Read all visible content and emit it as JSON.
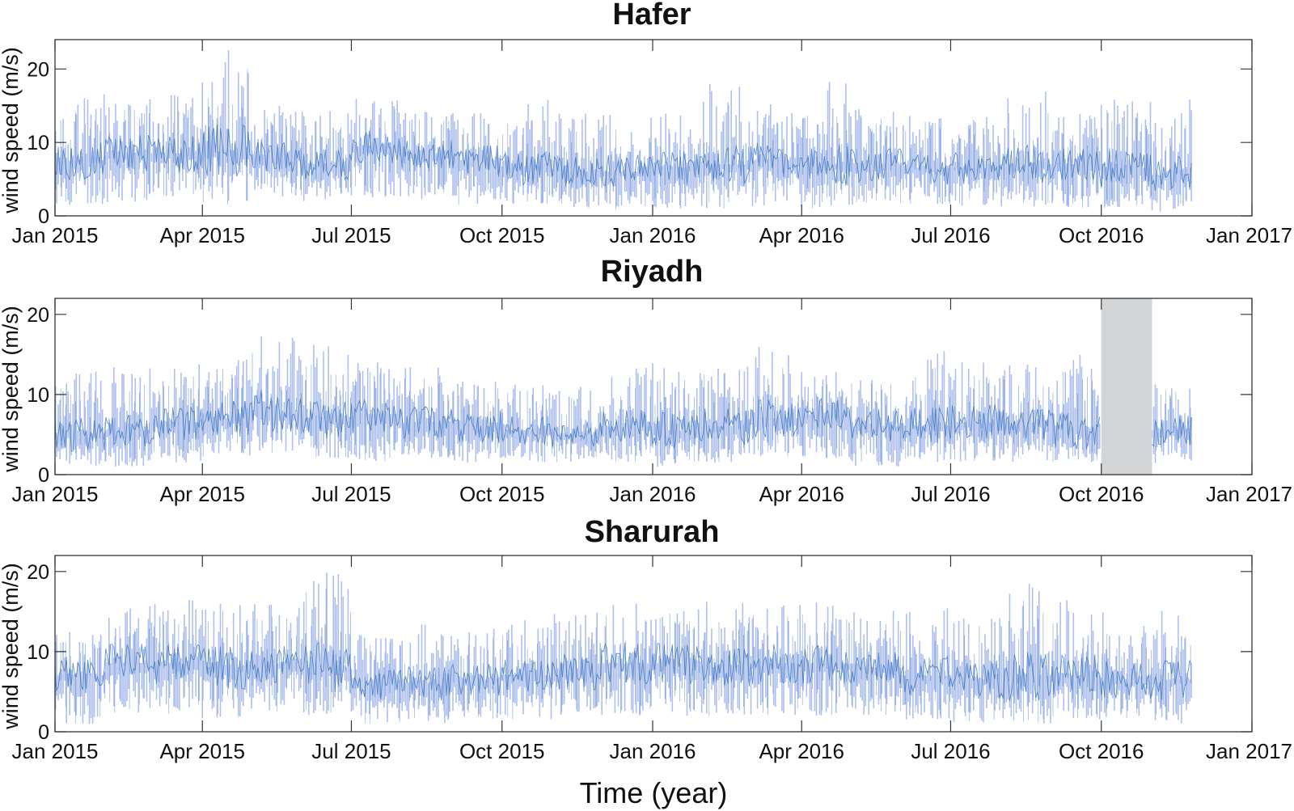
{
  "figure": {
    "xlabel": "Time (year)",
    "ylabel": "wind speed (m/s)",
    "colors": {
      "fill": "#AFC0EE",
      "line": "#2E6DB8",
      "gap": "#D3D4D6",
      "axis": "#333333"
    }
  },
  "chart_data": [
    {
      "type": "area",
      "title": "Hafer",
      "xlabel": "",
      "ylabel": "wind speed (m/s)",
      "xlim": [
        "2015-01-01",
        "2017-01-01"
      ],
      "ylim": [
        0,
        24
      ],
      "yticks": [
        0,
        10,
        20
      ],
      "xticks": [
        {
          "date": "2015-01-01",
          "label": "Jan 2015"
        },
        {
          "date": "2015-04-01",
          "label": "Apr 2015"
        },
        {
          "date": "2015-07-01",
          "label": "Jul 2015"
        },
        {
          "date": "2015-10-01",
          "label": "Oct 2015"
        },
        {
          "date": "2016-01-01",
          "label": "Jan 2016"
        },
        {
          "date": "2016-04-01",
          "label": "Apr 2016"
        },
        {
          "date": "2016-07-01",
          "label": "Jul 2016"
        },
        {
          "date": "2016-10-01",
          "label": "Oct 2016"
        },
        {
          "date": "2017-01-01",
          "label": "Jan 2017"
        }
      ],
      "data_range": [
        "2015-01-01",
        "2016-11-25"
      ],
      "series": [
        {
          "values_by_month": {
            "x": [
              "2015-01",
              "2015-02",
              "2015-03",
              "2015-04",
              "2015-05",
              "2015-06",
              "2015-07",
              "2015-08",
              "2015-09",
              "2015-10",
              "2015-11",
              "2015-12",
              "2016-01",
              "2016-02",
              "2016-03",
              "2016-04",
              "2016-05",
              "2016-06",
              "2016-07",
              "2016-08",
              "2016-09",
              "2016-10",
              "2016-11"
            ],
            "daily_mean": [
              7.5,
              8.5,
              8.5,
              8.8,
              8.0,
              7.0,
              9.5,
              8.5,
              7.5,
              6.5,
              6.0,
              6.0,
              6.5,
              7.0,
              7.5,
              7.0,
              7.0,
              6.5,
              6.5,
              7.0,
              7.0,
              6.5,
              5.5
            ],
            "daily_min": [
              1.5,
              1.5,
              2.0,
              1.5,
              2.5,
              2.0,
              2.5,
              2.0,
              1.5,
              1.5,
              1.0,
              0.8,
              1.0,
              1.0,
              1.0,
              1.0,
              1.0,
              1.5,
              1.0,
              1.0,
              1.0,
              1.0,
              0.5
            ],
            "daily_max": [
              17.0,
              16.0,
              16.5,
              23.0,
              15.0,
              14.5,
              16.0,
              15.0,
              14.0,
              16.0,
              14.0,
              14.0,
              14.0,
              18.0,
              15.5,
              19.0,
              15.0,
              14.5,
              14.0,
              17.5,
              14.5,
              16.5,
              16.0
            ]
          }
        }
      ]
    },
    {
      "type": "area",
      "title": "Riyadh",
      "xlabel": "",
      "ylabel": "wind speed (m/s)",
      "xlim": [
        "2015-01-01",
        "2017-01-01"
      ],
      "ylim": [
        0,
        22
      ],
      "yticks": [
        0,
        10,
        20
      ],
      "xticks": [
        {
          "date": "2015-01-01",
          "label": "Jan 2015"
        },
        {
          "date": "2015-04-01",
          "label": "Apr 2015"
        },
        {
          "date": "2015-07-01",
          "label": "Jul 2015"
        },
        {
          "date": "2015-10-01",
          "label": "Oct 2015"
        },
        {
          "date": "2016-01-01",
          "label": "Jan 2016"
        },
        {
          "date": "2016-04-01",
          "label": "Apr 2016"
        },
        {
          "date": "2016-07-01",
          "label": "Jul 2016"
        },
        {
          "date": "2016-10-01",
          "label": "Oct 2016"
        },
        {
          "date": "2017-01-01",
          "label": "Jan 2017"
        }
      ],
      "data_range": [
        "2015-01-01",
        "2016-11-25"
      ],
      "missing_period": [
        "2016-10-01",
        "2016-11-01"
      ],
      "series": [
        {
          "values_by_month": {
            "x": [
              "2015-01",
              "2015-02",
              "2015-03",
              "2015-04",
              "2015-05",
              "2015-06",
              "2015-07",
              "2015-08",
              "2015-09",
              "2015-10",
              "2015-11",
              "2015-12",
              "2016-01",
              "2016-02",
              "2016-03",
              "2016-04",
              "2016-05",
              "2016-06",
              "2016-07",
              "2016-08",
              "2016-09",
              "2016-10",
              "2016-11"
            ],
            "daily_mean": [
              5.0,
              5.5,
              6.5,
              7.0,
              8.0,
              7.0,
              7.5,
              6.5,
              6.0,
              5.5,
              5.0,
              6.0,
              5.5,
              6.0,
              7.0,
              7.5,
              6.0,
              6.0,
              6.5,
              6.5,
              5.5,
              5.5,
              5.5
            ],
            "daily_min": [
              1.0,
              1.0,
              1.5,
              2.0,
              2.5,
              2.0,
              1.5,
              2.0,
              1.5,
              1.5,
              1.5,
              1.5,
              1.0,
              1.5,
              2.0,
              2.0,
              1.0,
              1.5,
              1.5,
              1.5,
              1.5,
              1.5,
              1.0
            ],
            "daily_max": [
              13.0,
              14.0,
              14.5,
              15.0,
              17.5,
              16.5,
              14.5,
              13.5,
              12.5,
              12.0,
              11.0,
              13.5,
              14.0,
              14.5,
              16.0,
              13.5,
              13.0,
              15.5,
              15.0,
              14.0,
              15.0,
              10.0,
              12.5
            ]
          }
        }
      ]
    },
    {
      "type": "area",
      "title": "Sharurah",
      "xlabel": "Time (year)",
      "ylabel": "wind speed (m/s)",
      "xlim": [
        "2015-01-01",
        "2017-01-01"
      ],
      "ylim": [
        0,
        22
      ],
      "yticks": [
        0,
        10,
        20
      ],
      "xticks": [
        {
          "date": "2015-01-01",
          "label": "Jan 2015"
        },
        {
          "date": "2015-04-01",
          "label": "Apr 2015"
        },
        {
          "date": "2015-07-01",
          "label": "Jul 2015"
        },
        {
          "date": "2015-10-01",
          "label": "Oct 2015"
        },
        {
          "date": "2016-01-01",
          "label": "Jan 2016"
        },
        {
          "date": "2016-04-01",
          "label": "Apr 2016"
        },
        {
          "date": "2016-07-01",
          "label": "Jul 2016"
        },
        {
          "date": "2016-10-01",
          "label": "Oct 2016"
        },
        {
          "date": "2017-01-01",
          "label": "Jan 2017"
        }
      ],
      "data_range": [
        "2015-01-01",
        "2016-11-25"
      ],
      "series": [
        {
          "values_by_month": {
            "x": [
              "2015-01",
              "2015-02",
              "2015-03",
              "2015-04",
              "2015-05",
              "2015-06",
              "2015-07",
              "2015-08",
              "2015-09",
              "2015-10",
              "2015-11",
              "2015-12",
              "2016-01",
              "2016-02",
              "2016-03",
              "2016-04",
              "2016-05",
              "2016-06",
              "2016-07",
              "2016-08",
              "2016-09",
              "2016-10",
              "2016-11"
            ],
            "daily_mean": [
              7.0,
              8.5,
              8.5,
              8.0,
              8.5,
              8.0,
              6.0,
              6.0,
              6.5,
              7.0,
              7.5,
              8.5,
              8.5,
              8.0,
              8.5,
              8.5,
              8.0,
              7.0,
              6.5,
              7.0,
              7.0,
              6.5,
              6.5
            ],
            "daily_min": [
              1.0,
              2.0,
              2.0,
              1.0,
              2.5,
              2.0,
              1.0,
              1.0,
              1.5,
              1.5,
              2.0,
              2.0,
              2.0,
              2.0,
              2.0,
              2.0,
              2.0,
              1.5,
              1.0,
              1.0,
              1.5,
              1.5,
              1.0
            ],
            "daily_max": [
              12.5,
              17.0,
              16.5,
              17.0,
              16.0,
              21.0,
              12.5,
              13.5,
              13.0,
              14.0,
              15.0,
              17.0,
              16.5,
              16.5,
              16.5,
              16.5,
              15.5,
              15.5,
              15.0,
              19.0,
              16.5,
              15.0,
              16.0
            ]
          }
        }
      ]
    }
  ]
}
